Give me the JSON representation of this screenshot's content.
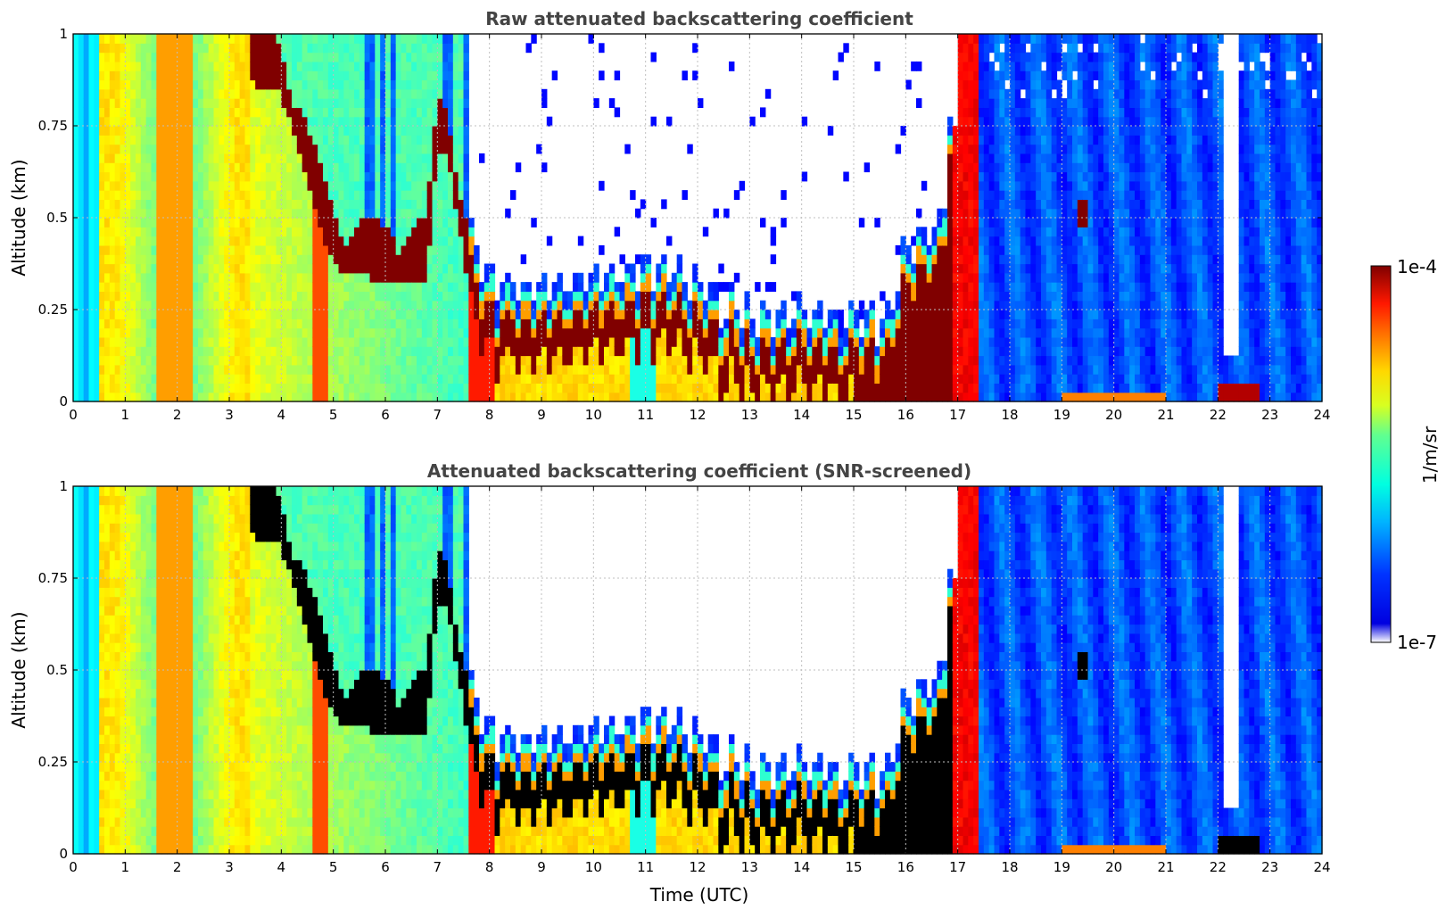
{
  "chart_data": [
    {
      "type": "heatmap",
      "title": "Raw attenuated backscattering coefficient",
      "xlabel": "",
      "ylabel": "Altitude (km)",
      "xlim": [
        0,
        24
      ],
      "ylim": [
        0,
        1
      ],
      "x_ticks": [
        "0",
        "1",
        "2",
        "3",
        "4",
        "5",
        "6",
        "7",
        "8",
        "9",
        "10",
        "11",
        "12",
        "13",
        "14",
        "15",
        "16",
        "17",
        "18",
        "19",
        "20",
        "21",
        "22",
        "23",
        "24"
      ],
      "y_ticks": [
        "0",
        "0.25",
        "0.5",
        "0.75",
        "1"
      ],
      "grid": true,
      "screened": false,
      "features": {
        "cloud_base_km": [
          [
            3.5,
            0.9
          ],
          [
            4.0,
            0.87
          ],
          [
            4.5,
            0.63
          ],
          [
            5.0,
            0.4
          ],
          [
            6.0,
            0.36
          ],
          [
            6.8,
            0.36
          ],
          [
            7.0,
            0.72
          ],
          [
            7.2,
            0.7
          ],
          [
            7.6,
            0.35
          ],
          [
            8.0,
            0.18
          ],
          [
            9.0,
            0.18
          ],
          [
            10.0,
            0.2
          ],
          [
            11.0,
            0.24
          ],
          [
            12.0,
            0.18
          ],
          [
            13.0,
            0.1
          ],
          [
            14.0,
            0.1
          ],
          [
            15.0,
            0.1
          ],
          [
            15.7,
            0.1
          ],
          [
            16.0,
            0.3
          ],
          [
            16.7,
            0.35
          ],
          [
            17.0,
            0.95
          ]
        ]
      }
    },
    {
      "type": "heatmap",
      "title": "Attenuated backscattering coefficient (SNR-screened)",
      "xlabel": "Time (UTC)",
      "ylabel": "Altitude (km)",
      "xlim": [
        0,
        24
      ],
      "ylim": [
        0,
        1
      ],
      "x_ticks": [
        "0",
        "1",
        "2",
        "3",
        "4",
        "5",
        "6",
        "7",
        "8",
        "9",
        "10",
        "11",
        "12",
        "13",
        "14",
        "15",
        "16",
        "17",
        "18",
        "19",
        "20",
        "21",
        "22",
        "23",
        "24"
      ],
      "y_ticks": [
        "0",
        "0.25",
        "0.5",
        "0.75",
        "1"
      ],
      "grid": true,
      "screened": true
    }
  ],
  "colorbar": {
    "label": "1/m/sr",
    "max_label": "1e-4",
    "min_label": "1e-7",
    "range": [
      1e-07,
      0.0001
    ],
    "scale": "log",
    "colormap": "jet"
  }
}
